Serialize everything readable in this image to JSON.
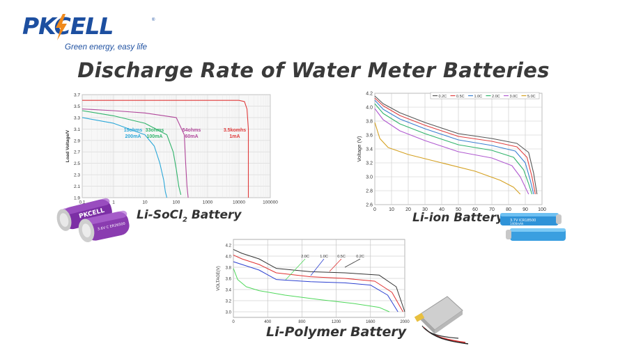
{
  "brand": {
    "logo_text": "PKCELL",
    "tagline": "Green energy, easy life",
    "registered": "®",
    "colors": {
      "blue": "#1d4fa0",
      "orange": "#f08a1c"
    }
  },
  "page_title": "Discharge Rate of Water Meter Batteries",
  "captions": {
    "li_socl2": "Li-SoCl",
    "li_socl2_sub": "2",
    "li_socl2_tail": " Battery",
    "li_ion": "Li-ion Battery",
    "li_polymer": "Li-Polymer Battery"
  },
  "photos": {
    "li_socl2": {
      "brand_label": "PKCELL",
      "cell_label": "3.6V C ER26500",
      "color": "#8a3cb0"
    },
    "li_ion": {
      "cell_label": "3.7V ICR18500",
      "cell_label2": "1400mAh",
      "color": "#3a9fe0"
    },
    "li_polymer": {
      "color": "#d8d8d8"
    }
  },
  "chart_data": [
    {
      "type": "line",
      "x_scale": "log",
      "xlim": [
        0.1,
        100000
      ],
      "ylim": [
        1.9,
        3.7
      ],
      "xlabel": "",
      "ylabel": "Load Voltage/V",
      "x_ticks": [
        "0.1",
        "1",
        "10",
        "100",
        "1000",
        "10000",
        "100000"
      ],
      "y_ticks": [
        "1.9",
        "2.1",
        "2.3",
        "2.5",
        "2.7",
        "2.9",
        "3.1",
        "3.3",
        "3.5",
        "3.7"
      ],
      "grid": true,
      "series": [
        {
          "name": "15ohms 200mA",
          "color": "#2aa7d8",
          "label1": "15ohms",
          "label2": "200mA",
          "x": [
            0.1,
            1,
            10,
            20,
            30,
            40,
            45,
            50
          ],
          "y": [
            3.3,
            3.2,
            3.0,
            2.8,
            2.5,
            2.2,
            2.0,
            1.9
          ]
        },
        {
          "name": "33ohms 100mA",
          "color": "#2fb36a",
          "label1": "33ohms",
          "label2": "100mA",
          "x": [
            0.1,
            1,
            10,
            50,
            80,
            100,
            120,
            140
          ],
          "y": [
            3.42,
            3.33,
            3.2,
            3.0,
            2.7,
            2.4,
            2.1,
            1.95
          ]
        },
        {
          "name": "54ohms 60mA",
          "color": "#b0469a",
          "label1": "54ohms",
          "label2": "60mA",
          "x": [
            0.1,
            1,
            10,
            100,
            180,
            200,
            220,
            240
          ],
          "y": [
            3.45,
            3.42,
            3.38,
            3.3,
            3.0,
            2.5,
            2.1,
            1.9
          ]
        },
        {
          "name": "3.5kohms 1mA",
          "color": "#e03b3b",
          "label1": "3.5komhs",
          "label2": "1mA",
          "x": [
            0.1,
            1,
            10,
            100,
            1000,
            10000,
            15000,
            18000,
            20000,
            20000
          ],
          "y": [
            3.6,
            3.6,
            3.6,
            3.6,
            3.6,
            3.6,
            3.58,
            3.45,
            3.1,
            1.9
          ]
        }
      ]
    },
    {
      "type": "line",
      "xlim": [
        0,
        100
      ],
      "ylim": [
        2.6,
        4.2
      ],
      "xlabel": "",
      "ylabel": "Voltage (V)",
      "x_ticks": [
        "0",
        "10",
        "20",
        "30",
        "40",
        "50",
        "60",
        "70",
        "80",
        "90",
        "100"
      ],
      "y_ticks": [
        "2.6",
        "2.8",
        "3.0",
        "3.2",
        "3.4",
        "3.6",
        "3.8",
        "4.0",
        "4.2"
      ],
      "grid": true,
      "legend": "top",
      "series": [
        {
          "name": "0.2C",
          "color": "#555555",
          "x": [
            0,
            5,
            15,
            30,
            50,
            70,
            85,
            92,
            95,
            97
          ],
          "y": [
            4.16,
            4.05,
            3.92,
            3.78,
            3.62,
            3.55,
            3.48,
            3.35,
            3.05,
            2.75
          ]
        },
        {
          "name": "0.5C",
          "color": "#e04040",
          "x": [
            0,
            5,
            15,
            30,
            50,
            70,
            85,
            91,
            94,
            96
          ],
          "y": [
            4.13,
            4.02,
            3.88,
            3.74,
            3.58,
            3.51,
            3.43,
            3.28,
            3.0,
            2.75
          ]
        },
        {
          "name": "1.0C",
          "color": "#3a7fd0",
          "x": [
            0,
            5,
            15,
            30,
            50,
            70,
            84,
            90,
            93,
            95
          ],
          "y": [
            4.1,
            3.97,
            3.83,
            3.69,
            3.53,
            3.45,
            3.37,
            3.2,
            2.95,
            2.75
          ]
        },
        {
          "name": "2.0C",
          "color": "#2fb36a",
          "x": [
            0,
            5,
            15,
            30,
            50,
            70,
            83,
            89,
            92,
            94
          ],
          "y": [
            4.05,
            3.91,
            3.76,
            3.62,
            3.46,
            3.38,
            3.28,
            3.1,
            2.9,
            2.75
          ]
        },
        {
          "name": "3.0C",
          "color": "#b05ad0",
          "x": [
            0,
            5,
            15,
            30,
            50,
            70,
            82,
            87,
            90,
            92
          ],
          "y": [
            3.98,
            3.82,
            3.66,
            3.52,
            3.36,
            3.27,
            3.16,
            3.0,
            2.85,
            2.75
          ]
        },
        {
          "name": "5.0C",
          "color": "#d4a020",
          "x": [
            0,
            3,
            8,
            20,
            40,
            60,
            75,
            83,
            87
          ],
          "y": [
            3.78,
            3.55,
            3.42,
            3.32,
            3.2,
            3.08,
            2.95,
            2.85,
            2.75
          ]
        }
      ]
    },
    {
      "type": "line",
      "xlim": [
        0,
        2000
      ],
      "ylim": [
        2.9,
        4.3
      ],
      "xlabel": "",
      "ylabel": "VOLTAGE(V)",
      "x_ticks": [
        "0",
        "400",
        "800",
        "1200",
        "1600",
        "2000"
      ],
      "y_ticks": [
        "3.0",
        "3.2",
        "3.4",
        "3.6",
        "3.8",
        "4.0",
        "4.2"
      ],
      "grid": true,
      "series": [
        {
          "name": "2.0C",
          "color": "#4ed85a",
          "x": [
            0,
            50,
            150,
            300,
            600,
            1000,
            1400,
            1700,
            1820
          ],
          "y": [
            3.78,
            3.58,
            3.45,
            3.38,
            3.3,
            3.22,
            3.15,
            3.08,
            3.0
          ]
        },
        {
          "name": "1.0C",
          "color": "#2a3fd0",
          "x": [
            0,
            100,
            200,
            300,
            500,
            900,
            1300,
            1600,
            1800,
            1920
          ],
          "y": [
            3.9,
            3.85,
            3.8,
            3.75,
            3.58,
            3.54,
            3.52,
            3.48,
            3.3,
            3.0
          ]
        },
        {
          "name": "0.5C",
          "color": "#e03030",
          "x": [
            0,
            100,
            200,
            300,
            500,
            900,
            1300,
            1650,
            1850,
            1980
          ],
          "y": [
            4.02,
            3.95,
            3.9,
            3.85,
            3.7,
            3.63,
            3.6,
            3.55,
            3.35,
            3.0
          ]
        },
        {
          "name": "0.2C",
          "color": "#333333",
          "x": [
            0,
            100,
            200,
            300,
            500,
            900,
            1300,
            1700,
            1900,
            2000
          ],
          "y": [
            4.12,
            4.05,
            4.0,
            3.95,
            3.78,
            3.72,
            3.7,
            3.66,
            3.45,
            3.0
          ]
        }
      ]
    }
  ]
}
